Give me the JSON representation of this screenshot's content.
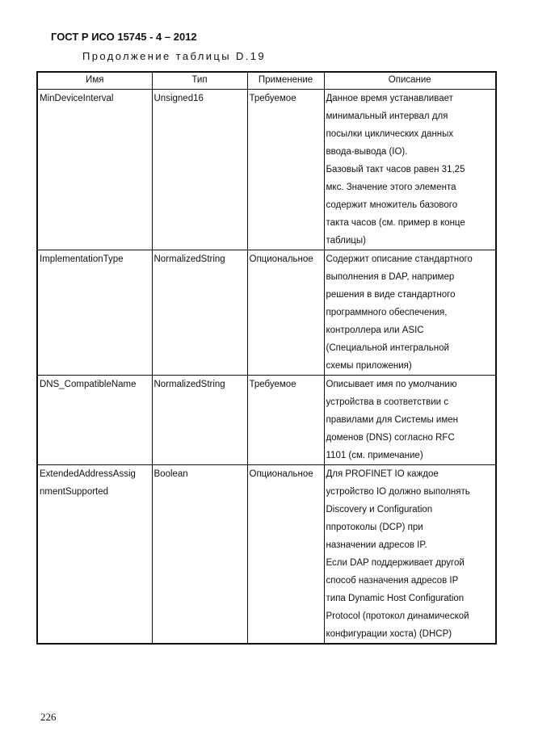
{
  "header": {
    "standard": "ГОСТ Р ИСО 15745 - 4 – 2012",
    "continuation": "Продолжение таблицы D.19"
  },
  "table": {
    "columns": [
      "Имя",
      "Тип",
      "Применение",
      "Описание"
    ],
    "rows": [
      {
        "name": [
          "MinDeviceInterval"
        ],
        "type": "Unsigned16",
        "usage": "Требуемое",
        "description": [
          "Данное время устанавливает",
          "минимальный интервал для",
          "посылки циклических данных",
          "ввода-вывода (IO).",
          "Базовый такт часов равен 31,25",
          "мкс. Значение этого элемента",
          "содержит множитель базового",
          "такта часов (см. пример в конце",
          "таблицы)"
        ]
      },
      {
        "name": [
          "ImplementationType"
        ],
        "type": "NormalizedString",
        "usage": "Опциональное",
        "description": [
          "Содержит описание стандартного",
          "выполнения в DAP, например",
          "решения в виде стандартного",
          "программного обеспечения,",
          "контроллера или ASIC",
          "(Специальной интегральной",
          "схемы приложения)"
        ]
      },
      {
        "name": [
          "DNS_CompatibleName"
        ],
        "type": "NormalizedString",
        "usage": "Требуемое",
        "description": [
          "Описывает имя по умолчанию",
          "устройства в соответствии с",
          "правилами для Системы имен",
          "доменов (DNS) согласно RFC",
          "1101 (см. примечание)"
        ]
      },
      {
        "name": [
          "ExtendedAddressAssig",
          "nmentSupported"
        ],
        "type": "Boolean",
        "usage": "Опциональное",
        "description": [
          "Для PROFINET IO каждое",
          "устройство IO должно выполнять",
          "Discovery и Configuration",
          "ппротоколы (DCP) при",
          "назначении адресов IP.",
          "Если DAP поддерживает другой",
          "способ назначения адресов IP",
          "типа Dynamic Host Configuration",
          "Protocol (протокол динамической",
          "конфигурации хоста) (DHCP)"
        ]
      }
    ]
  },
  "footer": {
    "page_number": "226"
  }
}
